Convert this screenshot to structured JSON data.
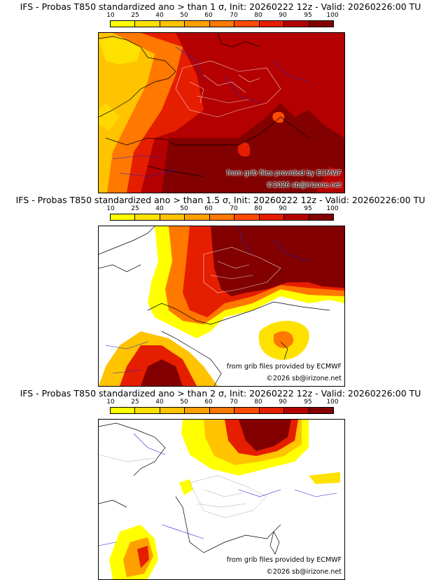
{
  "colorbar": {
    "ticks": [
      "10",
      "25",
      "40",
      "50",
      "60",
      "70",
      "80",
      "90",
      "95",
      "100"
    ],
    "colors": [
      "#ffff00",
      "#ffe100",
      "#ffc300",
      "#ffa000",
      "#ff7800",
      "#ff4b00",
      "#e61e00",
      "#b40000",
      "#820000"
    ]
  },
  "panels": [
    {
      "title": "IFS - Probas T850  standardized ano > than 1 σ, Init: 20260222 12z - Valid: 20260226:00 TU",
      "credit_source": "from grib files provided by ECMWF",
      "credit_copyright": "©2026 sb@irizone.net"
    },
    {
      "title": "IFS - Probas T850  standardized ano > than 1.5 σ, Init: 20260222 12z - Valid: 20260226:00 TU",
      "credit_source": "from grib files provided by ECMWF",
      "credit_copyright": "©2026 sb@irizone.net"
    },
    {
      "title": "IFS - Probas T850  standardized ano > than 2 σ, Init: 20260222 12z - Valid: 20260226:00 TU",
      "credit_source": "from grib files provided by ECMWF",
      "credit_copyright": "©2026 sb@irizone.net"
    }
  ]
}
